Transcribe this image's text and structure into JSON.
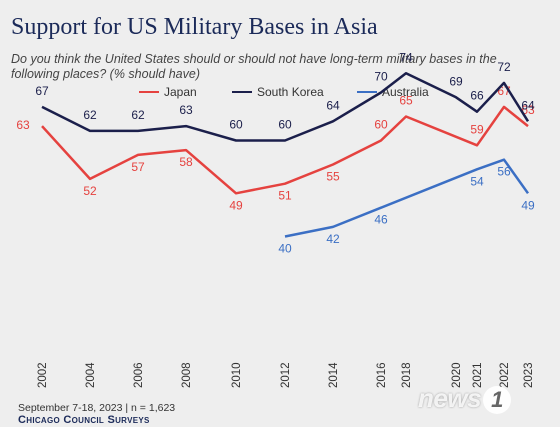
{
  "chart_data": {
    "type": "line",
    "title": "Support for US Military Bases in Asia",
    "subtitle": "Do you think the United States should or should not have long-term military bases in the following places? (% should have)",
    "xlabel": "",
    "ylabel": "",
    "grid": false,
    "legend_position": "top",
    "categories": [
      "2002",
      "2004",
      "2006",
      "2008",
      "2010",
      "2012",
      "2014",
      "2016",
      "2018",
      "2020",
      "2021",
      "2022",
      "2023"
    ],
    "series": [
      {
        "name": "Japan",
        "color": "#e5423f",
        "values": [
          63,
          52,
          57,
          58,
          49,
          51,
          55,
          60,
          65,
          null,
          59,
          67,
          63
        ]
      },
      {
        "name": "South Korea",
        "color": "#1b1f4b",
        "values": [
          67,
          62,
          62,
          63,
          60,
          60,
          64,
          70,
          74,
          69,
          66,
          72,
          64
        ]
      },
      {
        "name": "Australia",
        "color": "#3b6fc4",
        "values": [
          null,
          null,
          null,
          null,
          null,
          40,
          42,
          46,
          null,
          null,
          54,
          56,
          49
        ]
      }
    ]
  },
  "footer": {
    "note": "September 7-18, 2023 | n = 1,623",
    "org": "Chicago Council Surveys"
  },
  "watermark": {
    "text": "news",
    "badge": "1"
  }
}
